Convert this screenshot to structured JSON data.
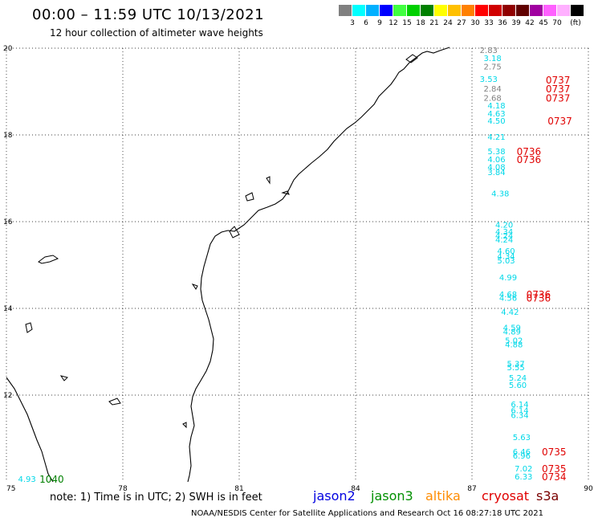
{
  "title": "00:00 – 11:59 UTC 10/13/2021",
  "subtitle": "12 hour collection of altimeter wave heights",
  "legend": {
    "colors": [
      "#808080",
      "#00ffff",
      "#00b0ff",
      "#0000ff",
      "#40ff40",
      "#00d000",
      "#008000",
      "#ffff00",
      "#ffc000",
      "#ff8000",
      "#ff0000",
      "#d00000",
      "#900000",
      "#600000",
      "#a000a0",
      "#ff60ff",
      "#ffb0ff",
      "#000000"
    ],
    "labels": [
      "3",
      "6",
      "9",
      "12",
      "15",
      "18",
      "21",
      "24",
      "27",
      "30",
      "33",
      "36",
      "39",
      "42",
      "45",
      "70"
    ],
    "unit": "(ft)"
  },
  "map": {
    "lon_ticks": [
      "75",
      "78",
      "81",
      "84",
      "87",
      "90"
    ],
    "lat_ticks": [
      "20",
      "18",
      "16",
      "14",
      "12"
    ],
    "lon_range": [
      75,
      90
    ],
    "lat_range": [
      10,
      20
    ],
    "grid": true,
    "coastline_color": "#000000"
  },
  "observations": [
    {
      "lon": 87.2,
      "lat": 19.89,
      "text": "2.83",
      "color": "#808080"
    },
    {
      "lon": 87.3,
      "lat": 19.7,
      "text": "3.18",
      "color": "#00d8e8"
    },
    {
      "lon": 87.3,
      "lat": 19.51,
      "text": "2.75",
      "color": "#808080"
    },
    {
      "lon": 87.2,
      "lat": 19.22,
      "text": "3.53",
      "color": "#00d8e8"
    },
    {
      "lon": 87.3,
      "lat": 19.0,
      "text": "2.84",
      "color": "#808080"
    },
    {
      "lon": 87.3,
      "lat": 18.79,
      "text": "2.68",
      "color": "#808080"
    },
    {
      "lon": 87.4,
      "lat": 18.61,
      "text": "4.18",
      "color": "#00d8e8"
    },
    {
      "lon": 87.4,
      "lat": 18.43,
      "text": "4.63",
      "color": "#00d8e8"
    },
    {
      "lon": 87.4,
      "lat": 18.26,
      "text": "4.50",
      "color": "#00d8e8"
    },
    {
      "lon": 87.4,
      "lat": 17.89,
      "text": "4.21",
      "color": "#00d8e8"
    },
    {
      "lon": 87.4,
      "lat": 17.56,
      "text": "5.38",
      "color": "#00d8e8"
    },
    {
      "lon": 87.4,
      "lat": 17.37,
      "text": "4.06",
      "color": "#00d8e8"
    },
    {
      "lon": 87.4,
      "lat": 17.19,
      "text": "4.08",
      "color": "#00d8e8"
    },
    {
      "lon": 87.4,
      "lat": 17.07,
      "text": "3.84",
      "color": "#00d8e8"
    },
    {
      "lon": 87.5,
      "lat": 16.58,
      "text": "4.38",
      "color": "#00d8e8"
    },
    {
      "lon": 87.6,
      "lat": 15.86,
      "text": "4.20",
      "color": "#00d8e8"
    },
    {
      "lon": 87.6,
      "lat": 15.7,
      "text": "4.34",
      "color": "#00d8e8"
    },
    {
      "lon": 87.6,
      "lat": 15.61,
      "text": "4.24",
      "color": "#00d8e8"
    },
    {
      "lon": 87.6,
      "lat": 15.52,
      "text": "4.24",
      "color": "#00d8e8"
    },
    {
      "lon": 87.65,
      "lat": 15.26,
      "text": "4.60",
      "color": "#00d8e8"
    },
    {
      "lon": 87.65,
      "lat": 15.14,
      "text": "4.34",
      "color": "#00d8e8"
    },
    {
      "lon": 87.65,
      "lat": 15.04,
      "text": "5.03",
      "color": "#00d8e8"
    },
    {
      "lon": 87.7,
      "lat": 14.65,
      "text": "4.99",
      "color": "#00d8e8"
    },
    {
      "lon": 87.7,
      "lat": 14.26,
      "text": "4.68",
      "color": "#00d8e8"
    },
    {
      "lon": 87.7,
      "lat": 14.18,
      "text": "4.56",
      "color": "#00d8e8"
    },
    {
      "lon": 87.75,
      "lat": 13.85,
      "text": "4.42",
      "color": "#00d8e8"
    },
    {
      "lon": 87.8,
      "lat": 13.49,
      "text": "4.59",
      "color": "#00d8e8"
    },
    {
      "lon": 87.8,
      "lat": 13.4,
      "text": "4.89",
      "color": "#00d8e8"
    },
    {
      "lon": 87.85,
      "lat": 13.19,
      "text": "5.02",
      "color": "#00d8e8"
    },
    {
      "lon": 87.85,
      "lat": 13.1,
      "text": "4.88",
      "color": "#00d8e8"
    },
    {
      "lon": 87.9,
      "lat": 12.66,
      "text": "5.37",
      "color": "#00d8e8"
    },
    {
      "lon": 87.9,
      "lat": 12.57,
      "text": "5.55",
      "color": "#00d8e8"
    },
    {
      "lon": 87.95,
      "lat": 12.33,
      "text": "5.24",
      "color": "#00d8e8"
    },
    {
      "lon": 87.95,
      "lat": 12.17,
      "text": "5.60",
      "color": "#00d8e8"
    },
    {
      "lon": 88.0,
      "lat": 11.72,
      "text": "6.14",
      "color": "#00d8e8"
    },
    {
      "lon": 88.0,
      "lat": 11.58,
      "text": "6.14",
      "color": "#00d8e8"
    },
    {
      "lon": 88.0,
      "lat": 11.47,
      "text": "6.34",
      "color": "#00d8e8"
    },
    {
      "lon": 88.05,
      "lat": 10.96,
      "text": "5.63",
      "color": "#00d8e8"
    },
    {
      "lon": 88.05,
      "lat": 10.63,
      "text": "6.46",
      "color": "#00d8e8"
    },
    {
      "lon": 88.05,
      "lat": 10.54,
      "text": "6.96",
      "color": "#00d8e8"
    },
    {
      "lon": 88.1,
      "lat": 10.24,
      "text": "7.02",
      "color": "#00d8e8"
    },
    {
      "lon": 88.1,
      "lat": 10.06,
      "text": "6.33",
      "color": "#00d8e8"
    },
    {
      "lon": 75.3,
      "lat": 10.0,
      "text": "4.93",
      "color": "#00d8e8"
    }
  ],
  "passes": [
    {
      "lon": 88.9,
      "lat": 19.2,
      "text": "0737",
      "color": "#e00000"
    },
    {
      "lon": 88.9,
      "lat": 19.0,
      "text": "0737",
      "color": "#e00000"
    },
    {
      "lon": 88.9,
      "lat": 18.79,
      "text": "0737",
      "color": "#e00000"
    },
    {
      "lon": 88.95,
      "lat": 18.26,
      "text": "0737",
      "color": "#e00000"
    },
    {
      "lon": 88.15,
      "lat": 17.56,
      "text": "0736",
      "color": "#e00000"
    },
    {
      "lon": 88.15,
      "lat": 17.37,
      "text": "0736",
      "color": "#e00000"
    },
    {
      "lon": 88.4,
      "lat": 14.26,
      "text": "0736",
      "color": "#e00000"
    },
    {
      "lon": 88.4,
      "lat": 14.18,
      "text": "0736",
      "color": "#e00000"
    },
    {
      "lon": 88.8,
      "lat": 10.63,
      "text": "0735",
      "color": "#e00000"
    },
    {
      "lon": 88.8,
      "lat": 10.24,
      "text": "0735",
      "color": "#e00000"
    },
    {
      "lon": 88.8,
      "lat": 10.06,
      "text": "0734",
      "color": "#e00000"
    },
    {
      "lon": 75.85,
      "lat": 10.0,
      "text": "1040",
      "color": "#008000"
    }
  ],
  "note": "note: 1) Time is in UTC; 2) SWH is in feet",
  "satellites": [
    {
      "name": "jason2",
      "color": "#0000e0"
    },
    {
      "name": "jason3",
      "color": "#009000"
    },
    {
      "name": "altika",
      "color": "#ff8c00"
    },
    {
      "name": "cryosat",
      "color": "#e00000"
    },
    {
      "name": "s3a",
      "color": "#7a0000"
    }
  ],
  "credit": "NOAA/NESDIS Center for Satellite Applications and Research    Oct 16 08:27:18 UTC 2021"
}
